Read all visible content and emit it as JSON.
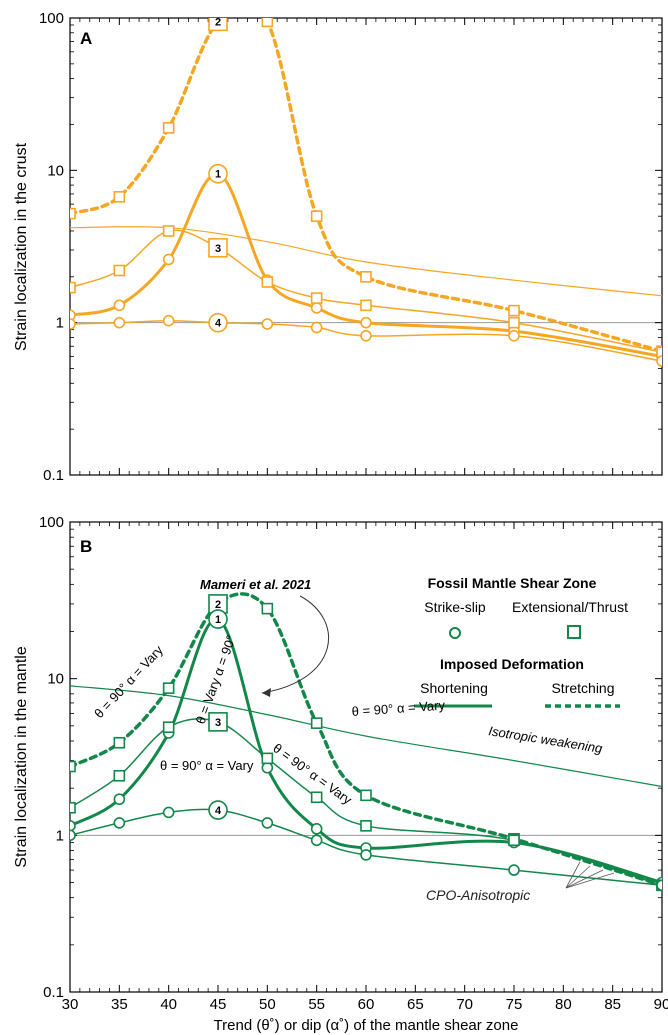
{
  "colors": {
    "crust": "#f5a623",
    "mantle": "#12874a",
    "axis": "#000000",
    "reference": "#999999"
  },
  "x_axis_label": "Trend (θ˚) or dip (α˚) of the mantle shear zone",
  "chart_data": [
    {
      "type": "line",
      "panel_label": "A",
      "ylabel": "Strain localization in the crust",
      "yscale": "log",
      "ylim": [
        0.1,
        100
      ],
      "xlim": [
        30,
        90
      ],
      "x_ticks": [
        "30",
        "35",
        "40",
        "45",
        "50",
        "55",
        "60",
        "65",
        "70",
        "75",
        "80",
        "85",
        "90"
      ],
      "y_ticks": [
        "0.1",
        "1",
        "10",
        "100"
      ],
      "reference_line": 1,
      "series": [
        {
          "id": "crust-2-stretching",
          "badge": "2",
          "marker": "square",
          "style": "dashed",
          "width": 3.5,
          "x": [
            30,
            35,
            40,
            45,
            50,
            55,
            60,
            75,
            90
          ],
          "y": [
            5.2,
            6.7,
            19,
            95,
            95,
            5.0,
            2.0,
            1.2,
            0.65
          ]
        },
        {
          "id": "crust-1-shortening",
          "badge": "1",
          "marker": "circle",
          "style": "solid",
          "width": 3,
          "x": [
            30,
            35,
            40,
            45,
            50,
            55,
            60,
            75,
            90
          ],
          "y": [
            1.12,
            1.3,
            2.6,
            9.5,
            1.9,
            1.25,
            1.0,
            0.88,
            0.6
          ]
        },
        {
          "id": "crust-3-stretching",
          "badge": "3",
          "marker": "square",
          "style": "solid",
          "width": 1.5,
          "x": [
            30,
            35,
            40,
            45,
            50,
            55,
            60,
            75,
            90
          ],
          "y": [
            1.7,
            2.2,
            4.0,
            3.1,
            1.85,
            1.45,
            1.3,
            1.0,
            0.64
          ]
        },
        {
          "id": "crust-4-strikeslip",
          "badge": "4",
          "marker": "circle",
          "style": "solid",
          "width": 1.5,
          "x": [
            30,
            35,
            40,
            45,
            50,
            55,
            60,
            75,
            90
          ],
          "y": [
            0.98,
            1.0,
            1.03,
            1.0,
            0.98,
            0.93,
            0.82,
            0.82,
            0.56
          ]
        },
        {
          "id": "crust-isotropic",
          "badge": "",
          "marker": "none",
          "style": "solid",
          "width": 1.2,
          "x": [
            30,
            40,
            50,
            60,
            75,
            90
          ],
          "y": [
            4.2,
            4.2,
            3.4,
            2.5,
            1.9,
            1.5
          ]
        }
      ]
    },
    {
      "type": "line",
      "panel_label": "B",
      "ylabel": "Strain localization in the mantle",
      "yscale": "log",
      "ylim": [
        0.1,
        100
      ],
      "xlim": [
        30,
        90
      ],
      "x_ticks": [
        "30",
        "35",
        "40",
        "45",
        "50",
        "55",
        "60",
        "65",
        "70",
        "75",
        "80",
        "85",
        "90"
      ],
      "y_ticks": [
        "0.1",
        "1",
        "10",
        "100"
      ],
      "reference_line": 1,
      "series": [
        {
          "id": "mantle-2-stretching",
          "badge": "2",
          "marker": "square",
          "style": "dashed",
          "width": 3.5,
          "x": [
            30,
            35,
            40,
            45,
            50,
            55,
            60,
            75,
            90
          ],
          "y": [
            2.75,
            3.9,
            8.7,
            30,
            28,
            5.2,
            1.8,
            0.95,
            0.48
          ]
        },
        {
          "id": "mantle-1-shortening",
          "badge": "1",
          "marker": "circle",
          "style": "solid",
          "width": 3,
          "x": [
            30,
            35,
            40,
            45,
            50,
            55,
            60,
            75,
            90
          ],
          "y": [
            1.15,
            1.7,
            4.5,
            24,
            2.7,
            1.1,
            0.83,
            0.9,
            0.5
          ]
        },
        {
          "id": "mantle-3-stretching",
          "badge": "3",
          "marker": "square",
          "style": "solid",
          "width": 1.5,
          "x": [
            30,
            35,
            40,
            45,
            50,
            55,
            60,
            75,
            90
          ],
          "y": [
            1.5,
            2.4,
            4.9,
            5.3,
            3.1,
            1.75,
            1.15,
            0.93,
            0.48
          ]
        },
        {
          "id": "mantle-4-strikeslip",
          "badge": "4",
          "marker": "circle",
          "style": "solid",
          "width": 1.5,
          "x": [
            30,
            35,
            40,
            45,
            50,
            55,
            60,
            75,
            90
          ],
          "y": [
            1.0,
            1.2,
            1.4,
            1.45,
            1.2,
            0.93,
            0.75,
            0.6,
            0.48
          ]
        },
        {
          "id": "mantle-isotropic",
          "badge": "",
          "marker": "none",
          "style": "solid",
          "width": 1.2,
          "x": [
            30,
            40,
            50,
            60,
            75,
            90
          ],
          "y": [
            9.0,
            7.8,
            5.9,
            4.3,
            3.0,
            2.05
          ]
        }
      ],
      "legend": {
        "title1": "Fossil Mantle Shear Zone",
        "strike_slip": "Strike-slip",
        "extensional": "Extensional/Thrust",
        "title2": "Imposed Deformation",
        "shortening": "Shortening",
        "stretching": "Stretching"
      },
      "annotations": {
        "mameri": "Mameri et al. 2021",
        "theta90_alpha_vary": "θ = 90° α = Vary",
        "theta_vary_alpha90": "θ = Vary α = 90°",
        "isotropic": "Isotropic weakening",
        "cpo": "CPO-Anisotropic"
      }
    }
  ]
}
